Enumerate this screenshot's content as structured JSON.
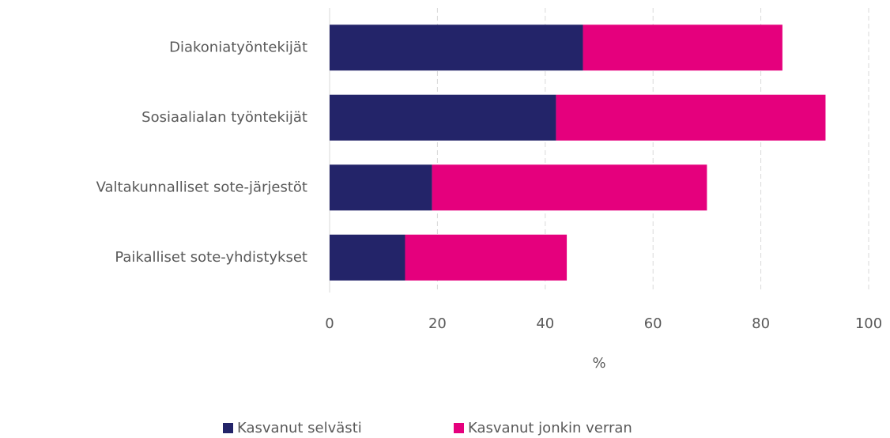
{
  "chart_data": {
    "type": "bar",
    "orientation": "horizontal",
    "stacked": true,
    "categories": [
      "Diakoniatyöntekijät",
      "Sosiaalialan työntekijät",
      "Valtakunnalliset sote-järjestöt",
      "Paikalliset sote-yhdistykset"
    ],
    "series": [
      {
        "name": "Kasvanut selvästi",
        "color": "#232469",
        "values": [
          47,
          42,
          19,
          14
        ]
      },
      {
        "name": "Kasvanut jonkin verran",
        "color": "#e5007d",
        "values": [
          37,
          50,
          51,
          30
        ]
      }
    ],
    "xlabel": "%",
    "xlim": [
      0,
      100
    ],
    "xticks": [
      0,
      20,
      40,
      60,
      80,
      100
    ],
    "grid": true,
    "legend": "bottom"
  }
}
